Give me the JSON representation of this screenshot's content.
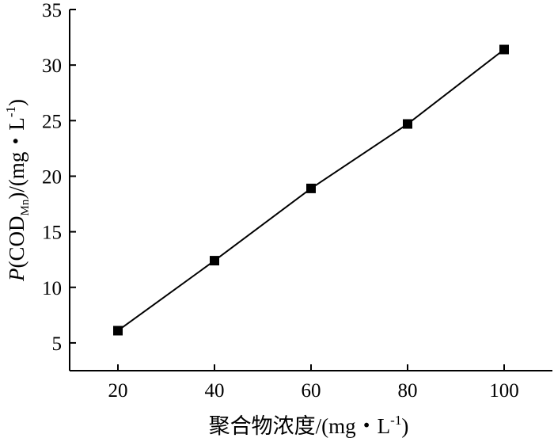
{
  "chart_data": {
    "type": "line",
    "title": "",
    "xlabel": "聚合物浓度/(mg・L⁻¹)",
    "ylabel": "P(COD_Mn)/(mg・L⁻¹)",
    "xlim": [
      10,
      110
    ],
    "ylim": [
      2.5,
      35
    ],
    "x_ticks": [
      20,
      40,
      60,
      80,
      100
    ],
    "y_ticks": [
      5,
      10,
      15,
      20,
      25,
      30,
      35
    ],
    "grid": false,
    "legend": "none",
    "series": [
      {
        "x": [
          20,
          40,
          60,
          80,
          100
        ],
        "values": [
          6.1,
          12.4,
          18.9,
          24.7,
          31.4
        ],
        "marker": "square",
        "color": "#000000"
      }
    ]
  },
  "labels": {
    "x_axis_title": "聚合物浓度/(mg・L",
    "x_axis_exp": "-1",
    "x_axis_close": ")",
    "y_axis_italic": "P",
    "y_axis_open": "(COD",
    "y_axis_sub": "Mn",
    "y_axis_rest": ")/(mg・L",
    "y_axis_exp": "-1",
    "y_axis_close": ")"
  }
}
